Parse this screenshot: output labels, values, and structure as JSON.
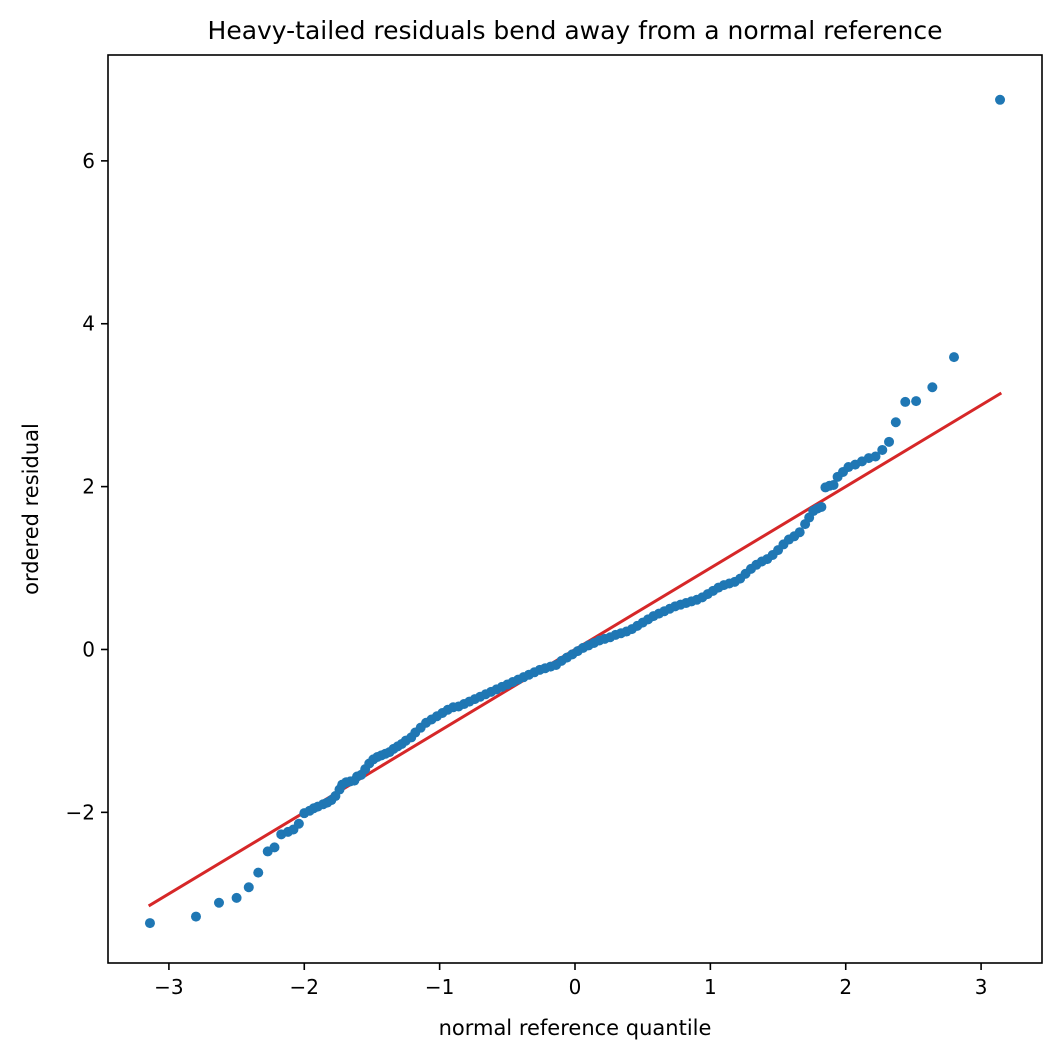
{
  "chart_data": {
    "type": "scatter",
    "title": "Heavy-tailed residuals bend away from a normal reference",
    "xlabel": "normal reference quantile",
    "ylabel": "ordered residual",
    "xlim": [
      -3.45,
      3.45
    ],
    "ylim": [
      -3.85,
      7.3
    ],
    "xticks": [
      -3,
      -2,
      -1,
      0,
      1,
      2,
      3
    ],
    "xtick_labels": [
      "−3",
      "−2",
      "−1",
      "0",
      "1",
      "2",
      "3"
    ],
    "yticks": [
      -2,
      0,
      2,
      4,
      6
    ],
    "ytick_labels": [
      "−2",
      "0",
      "2",
      "4",
      "6"
    ],
    "grid": false,
    "legend": "none",
    "series": [
      {
        "kind": "points",
        "color": "#1f77b4",
        "points": [
          [
            -3.14,
            -3.36
          ],
          [
            -2.8,
            -3.28
          ],
          [
            -2.63,
            -3.11
          ],
          [
            -2.5,
            -3.05
          ],
          [
            -2.41,
            -2.92
          ],
          [
            -2.34,
            -2.74
          ],
          [
            -2.27,
            -2.48
          ],
          [
            -2.22,
            -2.43
          ],
          [
            -2.17,
            -2.27
          ],
          [
            -2.12,
            -2.24
          ],
          [
            -2.08,
            -2.21
          ],
          [
            -2.04,
            -2.14
          ],
          [
            -2.0,
            -2.01
          ],
          [
            -1.96,
            -1.98
          ],
          [
            -1.93,
            -1.95
          ],
          [
            -1.9,
            -1.93
          ],
          [
            -1.86,
            -1.9
          ],
          [
            -1.83,
            -1.88
          ],
          [
            -1.8,
            -1.85
          ],
          [
            -1.77,
            -1.8
          ],
          [
            -1.74,
            -1.72
          ],
          [
            -1.72,
            -1.66
          ],
          [
            -1.69,
            -1.63
          ],
          [
            -1.66,
            -1.62
          ],
          [
            -1.63,
            -1.61
          ],
          [
            -1.61,
            -1.56
          ],
          [
            -1.58,
            -1.54
          ],
          [
            -1.55,
            -1.47
          ],
          [
            -1.52,
            -1.4
          ],
          [
            -1.49,
            -1.35
          ],
          [
            -1.46,
            -1.32
          ],
          [
            -1.43,
            -1.3
          ],
          [
            -1.4,
            -1.28
          ],
          [
            -1.37,
            -1.26
          ],
          [
            -1.34,
            -1.22
          ],
          [
            -1.31,
            -1.19
          ],
          [
            -1.28,
            -1.16
          ],
          [
            -1.25,
            -1.12
          ],
          [
            -1.21,
            -1.08
          ],
          [
            -1.18,
            -1.02
          ],
          [
            -1.14,
            -0.96
          ],
          [
            -1.1,
            -0.9
          ],
          [
            -1.06,
            -0.86
          ],
          [
            -1.02,
            -0.82
          ],
          [
            -0.98,
            -0.78
          ],
          [
            -0.94,
            -0.74
          ],
          [
            -0.9,
            -0.71
          ],
          [
            -0.86,
            -0.7
          ],
          [
            -0.82,
            -0.67
          ],
          [
            -0.78,
            -0.64
          ],
          [
            -0.74,
            -0.61
          ],
          [
            -0.7,
            -0.58
          ],
          [
            -0.66,
            -0.55
          ],
          [
            -0.62,
            -0.52
          ],
          [
            -0.58,
            -0.49
          ],
          [
            -0.54,
            -0.46
          ],
          [
            -0.5,
            -0.43
          ],
          [
            -0.46,
            -0.4
          ],
          [
            -0.42,
            -0.37
          ],
          [
            -0.38,
            -0.34
          ],
          [
            -0.34,
            -0.31
          ],
          [
            -0.3,
            -0.28
          ],
          [
            -0.26,
            -0.25
          ],
          [
            -0.22,
            -0.23
          ],
          [
            -0.18,
            -0.21
          ],
          [
            -0.14,
            -0.19
          ],
          [
            -0.1,
            -0.14
          ],
          [
            -0.06,
            -0.1
          ],
          [
            -0.02,
            -0.06
          ],
          [
            0.02,
            -0.02
          ],
          [
            0.06,
            0.02
          ],
          [
            0.1,
            0.05
          ],
          [
            0.14,
            0.08
          ],
          [
            0.18,
            0.11
          ],
          [
            0.22,
            0.13
          ],
          [
            0.26,
            0.15
          ],
          [
            0.3,
            0.18
          ],
          [
            0.34,
            0.2
          ],
          [
            0.38,
            0.22
          ],
          [
            0.42,
            0.25
          ],
          [
            0.46,
            0.29
          ],
          [
            0.5,
            0.33
          ],
          [
            0.54,
            0.37
          ],
          [
            0.58,
            0.41
          ],
          [
            0.62,
            0.44
          ],
          [
            0.66,
            0.47
          ],
          [
            0.7,
            0.5
          ],
          [
            0.74,
            0.53
          ],
          [
            0.78,
            0.55
          ],
          [
            0.82,
            0.57
          ],
          [
            0.86,
            0.59
          ],
          [
            0.9,
            0.61
          ],
          [
            0.94,
            0.64
          ],
          [
            0.98,
            0.68
          ],
          [
            1.02,
            0.72
          ],
          [
            1.06,
            0.76
          ],
          [
            1.1,
            0.79
          ],
          [
            1.14,
            0.81
          ],
          [
            1.18,
            0.83
          ],
          [
            1.22,
            0.87
          ],
          [
            1.26,
            0.93
          ],
          [
            1.3,
            0.99
          ],
          [
            1.34,
            1.04
          ],
          [
            1.38,
            1.08
          ],
          [
            1.42,
            1.11
          ],
          [
            1.46,
            1.16
          ],
          [
            1.5,
            1.22
          ],
          [
            1.54,
            1.29
          ],
          [
            1.58,
            1.35
          ],
          [
            1.62,
            1.39
          ],
          [
            1.66,
            1.44
          ],
          [
            1.7,
            1.54
          ],
          [
            1.73,
            1.62
          ],
          [
            1.76,
            1.7
          ],
          [
            1.79,
            1.73
          ],
          [
            1.82,
            1.75
          ],
          [
            1.85,
            1.99
          ],
          [
            1.88,
            2.01
          ],
          [
            1.91,
            2.02
          ],
          [
            1.94,
            2.12
          ],
          [
            1.98,
            2.18
          ],
          [
            2.02,
            2.24
          ],
          [
            2.07,
            2.27
          ],
          [
            2.12,
            2.31
          ],
          [
            2.17,
            2.35
          ],
          [
            2.22,
            2.37
          ],
          [
            2.27,
            2.45
          ],
          [
            2.32,
            2.55
          ],
          [
            2.37,
            2.79
          ],
          [
            2.44,
            3.04
          ],
          [
            2.52,
            3.05
          ],
          [
            2.64,
            3.22
          ],
          [
            2.8,
            3.59
          ],
          [
            3.14,
            6.75
          ]
        ]
      },
      {
        "kind": "line",
        "color": "#d62728",
        "points": [
          [
            -3.14,
            -3.14
          ],
          [
            3.14,
            3.14
          ]
        ]
      }
    ]
  }
}
